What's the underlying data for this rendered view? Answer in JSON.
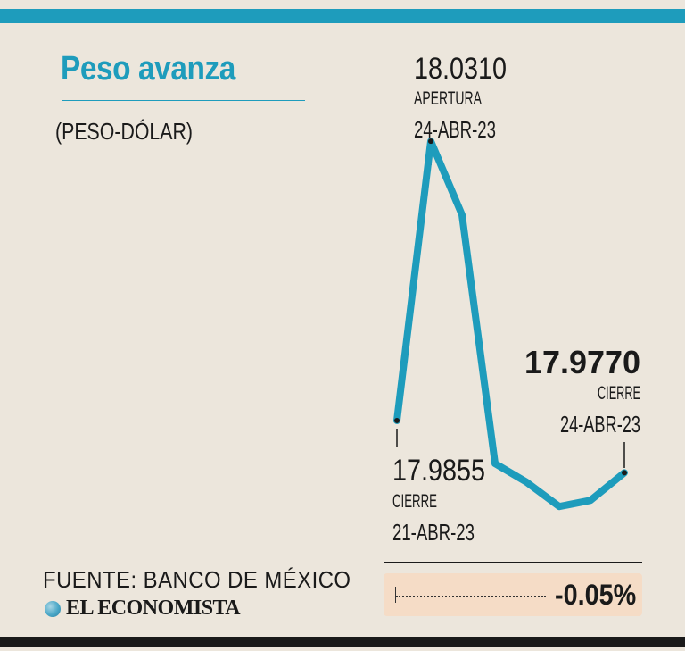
{
  "header": {
    "title": "Peso avanza",
    "subtitle": "(PESO-DÓLAR)"
  },
  "colors": {
    "accent": "#1e9cbc",
    "background": "#ece6dc",
    "text": "#1a1a1a",
    "highlight_box": "#f5dcc6"
  },
  "chart_data": {
    "type": "line",
    "title": "Peso avanza",
    "subtitle": "(PESO-DÓLAR)",
    "xlabel": "",
    "ylabel": "",
    "grid": false,
    "legend": "none",
    "ylim": [
      17.958,
      18.038
    ],
    "series": [
      {
        "name": "",
        "values": [
          17.9855,
          18.031,
          18.019,
          17.9785,
          17.9755,
          17.9715,
          17.9725,
          17.977
        ]
      }
    ],
    "annotations": [
      {
        "id": "start",
        "value": "17.9855",
        "label": "CIERRE",
        "date": "21-ABR-23",
        "point_index": 0
      },
      {
        "id": "peak",
        "value": "18.0310",
        "label": "APERTURA",
        "date": "24-ABR-23",
        "point_index": 1
      },
      {
        "id": "end",
        "value": "17.9770",
        "label": "CIERRE",
        "date": "24-ABR-23",
        "point_index": 7
      }
    ]
  },
  "change": {
    "value": "-0.05%"
  },
  "footer": {
    "source": "FUENTE: BANCO DE MÉXICO",
    "brand": "EL ECONOMISTA"
  }
}
